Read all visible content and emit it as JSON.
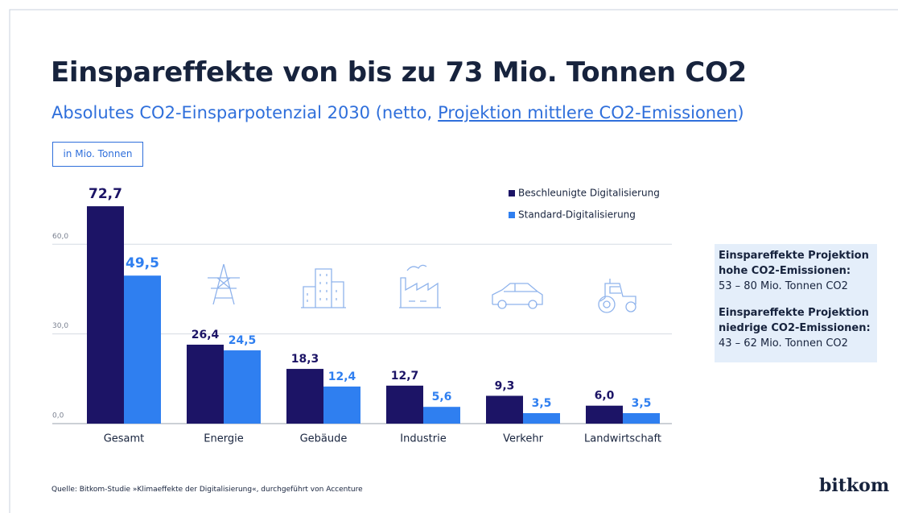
{
  "chart_data": {
    "type": "bar",
    "title": "Einspareffekte von bis zu 73 Mio. Tonnen CO2",
    "subtitle": [
      "Absolutes CO2-Einsparpotenzial 2030 (netto,",
      "Projektion mittlere CO2-Emissionen",
      ")"
    ],
    "unit_label": "in Mio. Tonnen",
    "categories": [
      "Gesamt",
      "Energie",
      "Gebäude",
      "Industrie",
      "Verkehr",
      "Landwirtschaft"
    ],
    "series": [
      {
        "name": "Beschleunigte Digitalisierung",
        "color": "#1c1466",
        "values": [
          72.7,
          26.4,
          18.3,
          12.7,
          9.3,
          6.0
        ],
        "value_labels": [
          "72,7",
          "26,4",
          "18,3",
          "12,7",
          "9,3",
          "6,0"
        ]
      },
      {
        "name": "Standard-Digitalisierung",
        "color": "#2f7ff0",
        "values": [
          49.5,
          24.5,
          12.4,
          5.6,
          3.5,
          3.5
        ],
        "value_labels": [
          "49,5",
          "24,5",
          "12,4",
          "5,6",
          "3,5",
          "3,5"
        ]
      }
    ],
    "ylim": [
      0,
      80
    ],
    "yticks": [
      {
        "value": 0,
        "label": "0,0"
      },
      {
        "value": 30,
        "label": "30,0"
      },
      {
        "value": 60,
        "label": "60,0"
      }
    ],
    "grid": true,
    "legend": "top-right",
    "info_box": [
      {
        "heading": [
          "Einspareffekte Projektion",
          "hohe CO2-Emissionen:"
        ],
        "text": "53 – 80 Mio. Tonnen CO2"
      },
      {
        "heading": [
          "Einspareffekte Projektion",
          "niedrige CO2-Emissionen:"
        ],
        "text": "43 – 62 Mio. Tonnen CO2"
      }
    ],
    "source": "Quelle: Bitkom-Studie »Klimaeffekte der Digitalisierung«, durchgeführt von Accenture",
    "logo": "bitkom"
  }
}
